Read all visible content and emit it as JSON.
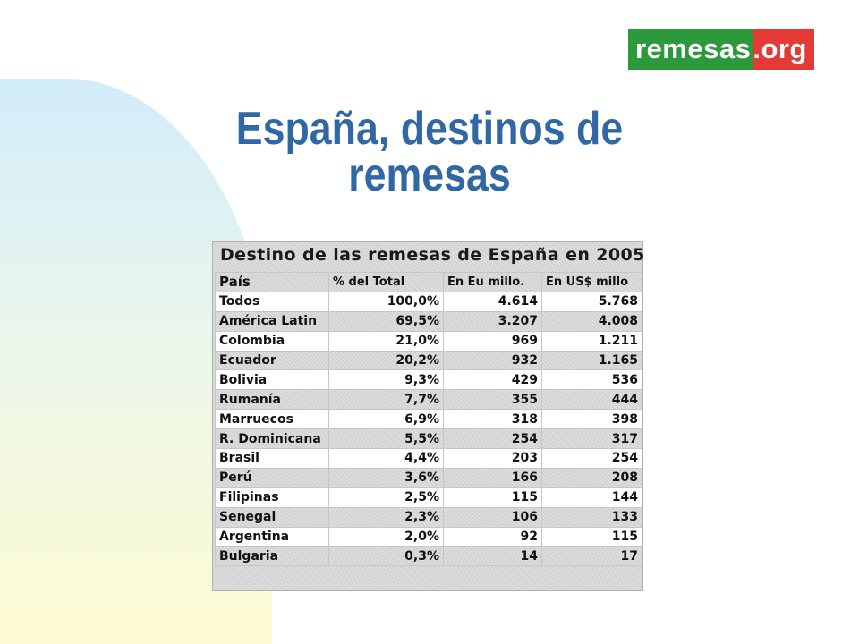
{
  "logo": {
    "part1": "remesas",
    "part2": ".org"
  },
  "title": {
    "line1": "España, destinos de",
    "line2": "remesas"
  },
  "table": {
    "title": "Destino de las remesas de España en 2005",
    "headers": [
      "País",
      "% del Total",
      "En Eu millo.",
      "En US$ millo"
    ],
    "rows": [
      [
        "Todos",
        "100,0%",
        "4.614",
        "5.768"
      ],
      [
        "América Latin",
        "69,5%",
        "3.207",
        "4.008"
      ],
      [
        "Colombia",
        "21,0%",
        "969",
        "1.211"
      ],
      [
        "Ecuador",
        "20,2%",
        "932",
        "1.165"
      ],
      [
        "Bolivia",
        "9,3%",
        "429",
        "536"
      ],
      [
        "Rumanía",
        "7,7%",
        "355",
        "444"
      ],
      [
        "Marruecos",
        "6,9%",
        "318",
        "398"
      ],
      [
        "R. Dominicana",
        "5,5%",
        "254",
        "317"
      ],
      [
        "Brasil",
        "4,4%",
        "203",
        "254"
      ],
      [
        "Perú",
        "3,6%",
        "166",
        "208"
      ],
      [
        "Filipinas",
        "2,5%",
        "115",
        "144"
      ],
      [
        "Senegal",
        "2,3%",
        "106",
        "133"
      ],
      [
        "Argentina",
        "2,0%",
        "92",
        "115"
      ],
      [
        "Bulgaria",
        "0,3%",
        "14",
        "17"
      ]
    ]
  },
  "colors": {
    "title": "#3068a6",
    "logo_green": "#2c9a3c",
    "logo_red": "#e53935"
  }
}
